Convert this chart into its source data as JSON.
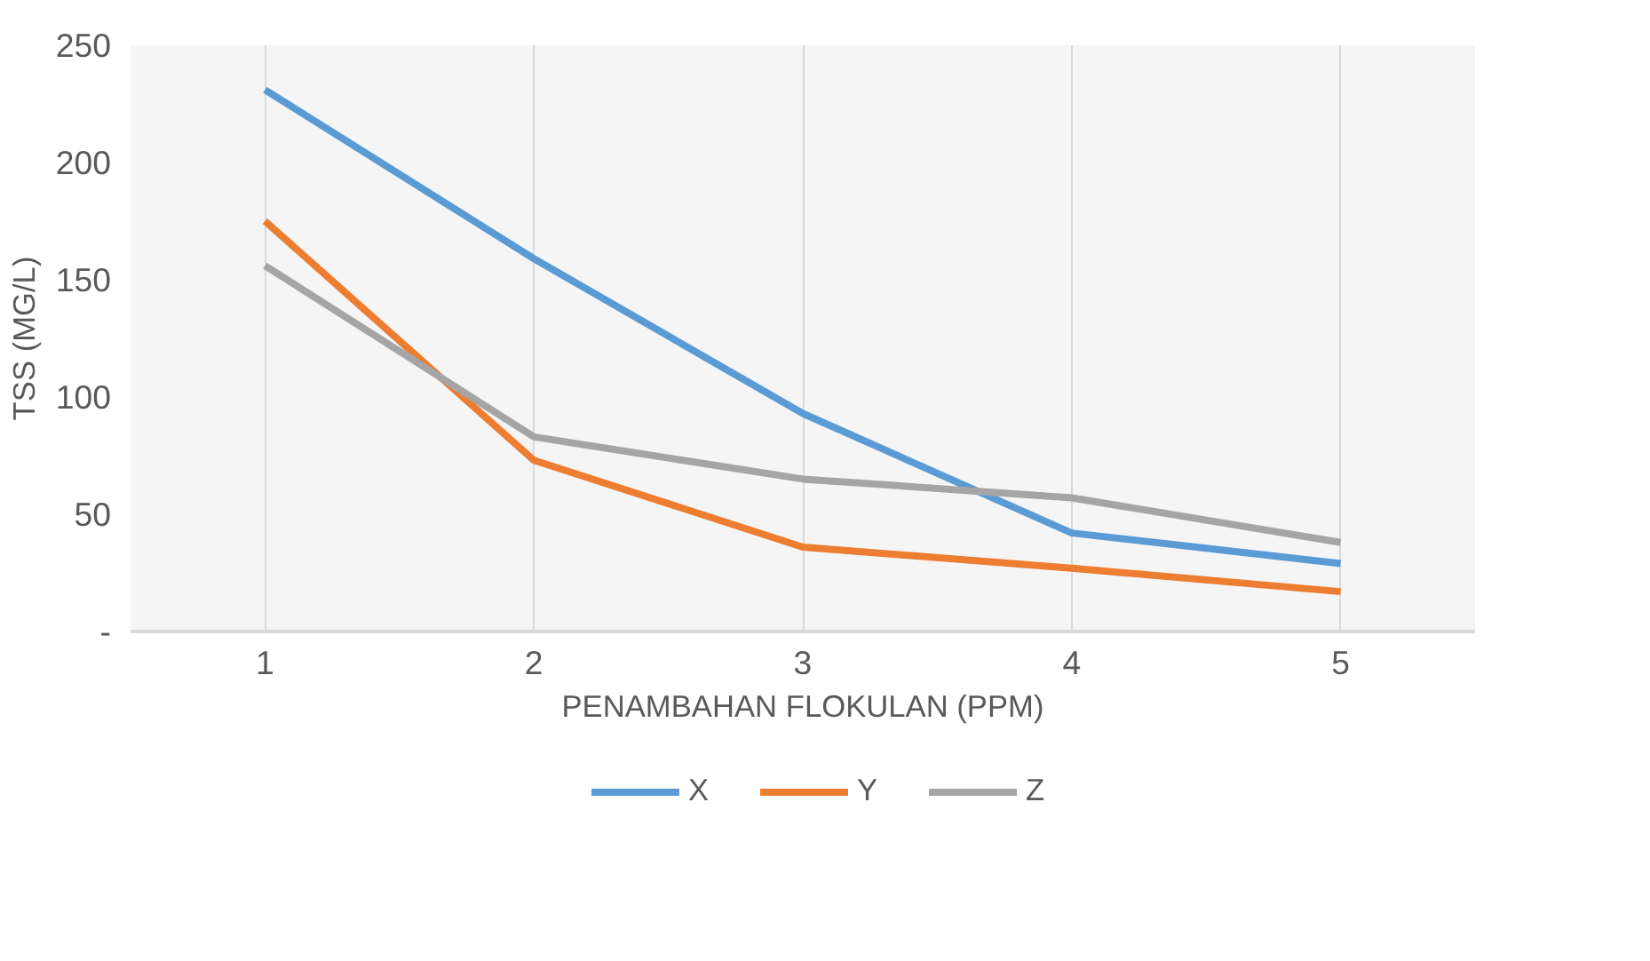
{
  "chart_data": {
    "type": "line",
    "xlabel": "PENAMBAHAN FLOKULAN (PPM)",
    "ylabel": "TSS (MG/L)",
    "categories": [
      "1",
      "2",
      "3",
      "4",
      "5"
    ],
    "series": [
      {
        "name": "X",
        "color": "#5b9bd5",
        "values": [
          231,
          159,
          93,
          42,
          29
        ]
      },
      {
        "name": "Y",
        "color": "#ed7d31",
        "values": [
          175,
          73,
          36,
          27,
          17
        ]
      },
      {
        "name": "Z",
        "color": "#a5a5a5",
        "values": [
          156,
          83,
          65,
          57,
          38
        ]
      }
    ],
    "ylim": [
      0,
      250
    ],
    "yticks": [
      {
        "value": 0,
        "label": "-"
      },
      50,
      100,
      150,
      200,
      250
    ],
    "grid": "x",
    "legend": "bottom",
    "marker": "none",
    "line_style": "solid"
  }
}
